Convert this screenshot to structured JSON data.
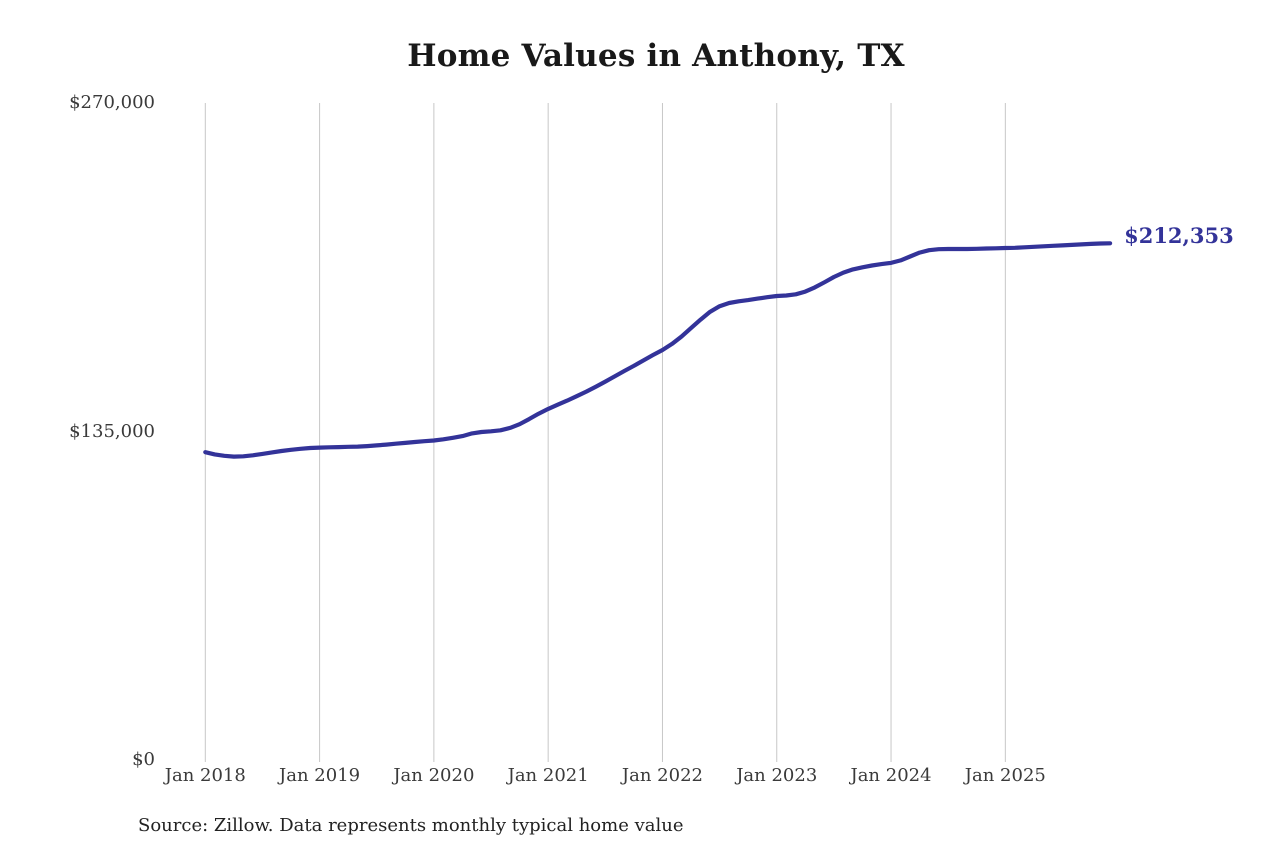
{
  "page_title": "Home Values in Anthony, TX",
  "chart_data": {
    "type": "line",
    "title": "Home Values in Anthony, TX",
    "xlabel": "",
    "ylabel": "",
    "x_domain": [
      "Jan 2018",
      "Dec 2025"
    ],
    "x_step": "1 month",
    "x_tick_labels": [
      "Jan 2018",
      "Jan 2019",
      "Jan 2020",
      "Jan 2021",
      "Jan 2022",
      "Jan 2023",
      "Jan 2024",
      "Jan 2025"
    ],
    "y_ticks": [
      0,
      135000,
      270000
    ],
    "y_tick_labels": [
      "$0",
      "$135,000",
      "$270,000"
    ],
    "ylim": [
      0,
      270000
    ],
    "grid": "vertical yearly gridlines only",
    "legend": "none",
    "line_color": "#333399",
    "grid_color": "#c7c7c7",
    "latest_value": 212353,
    "annotations": {
      "latest_value_label": "$212,353",
      "source_note": "Source: Zillow. Data represents monthly typical home value"
    },
    "series": [
      {
        "name": "Monthly typical home value",
        "values": [
          126500,
          125600,
          125000,
          124700,
          124800,
          125200,
          125800,
          126400,
          127000,
          127500,
          127900,
          128200,
          128400,
          128500,
          128600,
          128700,
          128800,
          129000,
          129300,
          129600,
          130000,
          130300,
          130700,
          131000,
          131300,
          131800,
          132400,
          133100,
          134200,
          134800,
          135100,
          135500,
          136500,
          138000,
          140100,
          142300,
          144300,
          146000,
          147700,
          149500,
          151400,
          153400,
          155500,
          157700,
          159900,
          162000,
          164200,
          166400,
          168500,
          171000,
          174000,
          177500,
          181000,
          184200,
          186500,
          187800,
          188500,
          189000,
          189600,
          190200,
          190700,
          190900,
          191400,
          192500,
          194200,
          196300,
          198500,
          200300,
          201600,
          202500,
          203200,
          203800,
          204300,
          205300,
          206900,
          208500,
          209500,
          209900,
          210000,
          210000,
          210000,
          210100,
          210200,
          210300,
          210400,
          210500,
          210700,
          210900,
          211100,
          211300,
          211500,
          211700,
          211900,
          212100,
          212250,
          212353
        ]
      }
    ]
  },
  "layout_colors": {
    "title_color": "#191919",
    "axis_label_color": "#3a3a3a",
    "source_color": "#222222"
  }
}
